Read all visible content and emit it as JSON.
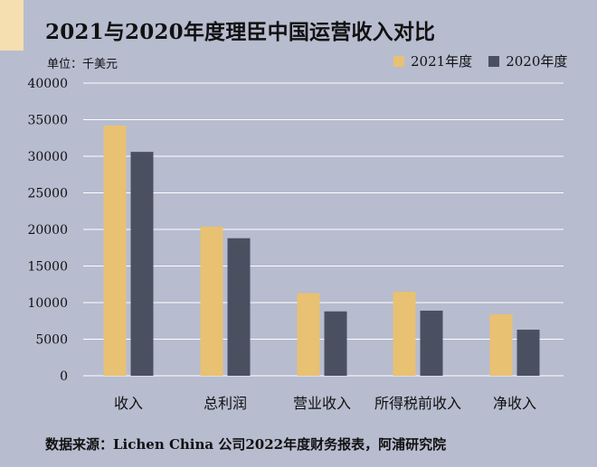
{
  "page": {
    "title": "2021与2020年度理臣中国运营收入对比",
    "unit": "单位：千美元",
    "source": "数据来源：Lichen China 公司2022年度财务报表，阿浦研究院",
    "colors": {
      "background": "#b7bccf",
      "accent": "#f5deb0",
      "series_2021": "#e8c172",
      "series_2020": "#4a5060",
      "grid": "#ffffff"
    }
  },
  "chart_data": {
    "type": "bar",
    "title": "2021与2020年度理臣中国运营收入对比",
    "ylabel": "单位：千美元",
    "xlabel": "",
    "categories": [
      "收入",
      "总利润",
      "营业收入",
      "所得税前收入",
      "净收入"
    ],
    "series": [
      {
        "name": "2021年度",
        "color": "#e8c172",
        "values": [
          34200,
          20400,
          11300,
          11500,
          8400
        ]
      },
      {
        "name": "2020年度",
        "color": "#4a5060",
        "values": [
          30600,
          18800,
          8800,
          8900,
          6300
        ]
      }
    ],
    "ylim": [
      0,
      40000
    ],
    "yticks": [
      0,
      5000,
      10000,
      15000,
      20000,
      25000,
      30000,
      35000,
      40000
    ],
    "grid": true,
    "legend_position": "top-right"
  }
}
